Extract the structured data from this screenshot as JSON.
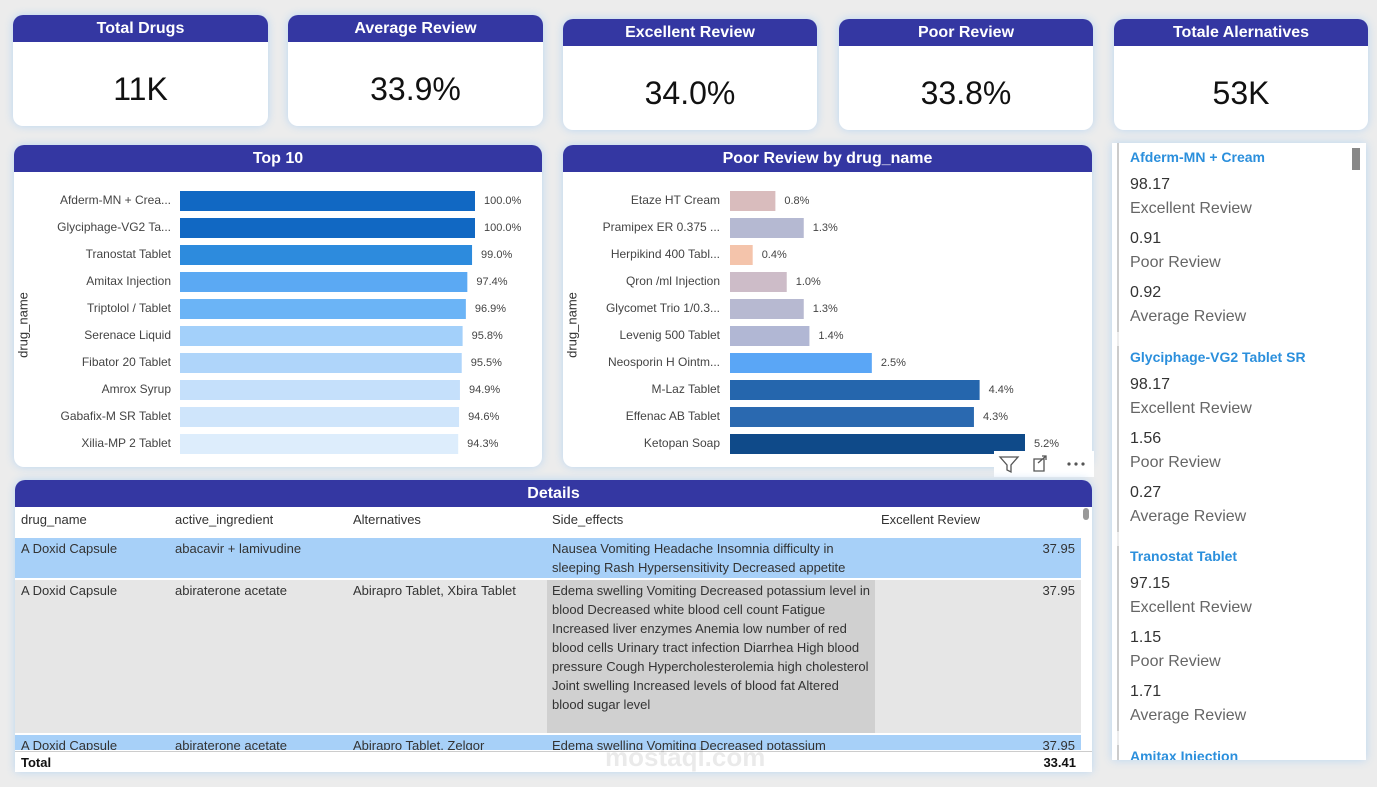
{
  "cards": [
    {
      "title": "Total Drugs",
      "value": "11K"
    },
    {
      "title": "Average Review",
      "value": "33.9%"
    },
    {
      "title": "Excellent Review",
      "value": "34.0%"
    },
    {
      "title": "Poor Review",
      "value": "33.8%"
    },
    {
      "title": "Totale Alernatives",
      "value": "53K"
    }
  ],
  "chart_data": [
    {
      "type": "bar",
      "orientation": "horizontal",
      "title": "Top 10",
      "y_label": "drug_name",
      "categories": [
        "Afderm-MN + Crea...",
        "Glyciphage-VG2 Ta...",
        "Tranostat Tablet",
        "Amitax Injection",
        "Triptolol / Tablet",
        "Serenace Liquid",
        "Fibator 20 Tablet",
        "Amrox Syrup",
        "Gabafix-M SR Tablet",
        "Xilia-MP 2 Tablet"
      ],
      "values": [
        100.0,
        100.0,
        99.0,
        97.4,
        96.9,
        95.8,
        95.5,
        94.9,
        94.6,
        94.3
      ],
      "value_labels": [
        "100.0%",
        "100.0%",
        "99.0%",
        "97.4%",
        "96.9%",
        "95.8%",
        "95.5%",
        "94.9%",
        "94.6%",
        "94.3%"
      ],
      "colors": [
        "#1168c3",
        "#1168c3",
        "#2d8bdd",
        "#5ba9f3",
        "#6bb4f6",
        "#a3d0fa",
        "#afd5fa",
        "#c5e0fb",
        "#cfe5fb",
        "#ddedfc"
      ]
    },
    {
      "type": "bar",
      "orientation": "horizontal",
      "title": "Poor Review by drug_name",
      "y_label": "drug_name",
      "categories": [
        "Etaze HT Cream",
        "Pramipex ER 0.375 ...",
        "Herpikind 400 Tabl...",
        "Qron /ml Injection",
        "Glycomet Trio 1/0.3...",
        "Levenig 500 Tablet",
        "Neosporin H Ointm...",
        "M-Laz Tablet",
        "Effenac AB Tablet",
        "Ketopan Soap"
      ],
      "values": [
        0.8,
        1.3,
        0.4,
        1.0,
        1.3,
        1.4,
        2.5,
        4.4,
        4.3,
        5.2
      ],
      "value_labels": [
        "0.8%",
        "1.3%",
        "0.4%",
        "1.0%",
        "1.3%",
        "1.4%",
        "2.5%",
        "4.4%",
        "4.3%",
        "5.2%"
      ],
      "colors": [
        "#d9bcbd",
        "#b5b9d2",
        "#f4c4ab",
        "#cdbcc8",
        "#b7b9d1",
        "#b1b7d4",
        "#5aa6f6",
        "#2566ad",
        "#2a69b0",
        "#0f4a89"
      ]
    }
  ],
  "details": {
    "title": "Details",
    "columns": [
      "drug_name",
      "active_ingredient",
      "Alternatives",
      "Side_effects",
      "Excellent Review"
    ],
    "rows": [
      [
        "A Doxid Capsule",
        "abacavir + lamivudine",
        null,
        "Nausea Vomiting Headache Insomnia difficulty in sleeping Rash Hypersensitivity Decreased appetite",
        37.95
      ],
      [
        "A Doxid Capsule",
        "abiraterone acetate",
        "Abirapro Tablet, Xbira Tablet",
        "Edema swelling Vomiting Decreased potassium level in blood Decreased white blood cell count Fatigue Increased liver enzymes Anemia low number of red blood cells Urinary tract infection Diarrhea High blood pressure Cough Hypercholesterolemia high cholesterol Joint swelling Increased levels of blood fat Altered blood sugar level",
        37.95
      ],
      [
        "A Doxid Capsule",
        "abiraterone acetate",
        "Abirapro Tablet, Zelgor",
        "Edema swelling Vomiting Decreased potassium",
        37.95
      ]
    ],
    "total": {
      "label": "Total",
      "value": 33.41
    }
  },
  "drug_list": {
    "items": [
      {
        "name": "Afderm-MN + Cream",
        "metrics": [
          {
            "value": 98.17,
            "label": "Excellent Review"
          },
          {
            "value": 0.91,
            "label": "Poor Review"
          },
          {
            "value": 0.92,
            "label": "Average Review"
          }
        ]
      },
      {
        "name": "Glyciphage-VG2 Tablet SR",
        "metrics": [
          {
            "value": 98.17,
            "label": "Excellent Review"
          },
          {
            "value": 1.56,
            "label": "Poor Review"
          },
          {
            "value": 0.27,
            "label": "Average Review"
          }
        ]
      },
      {
        "name": "Tranostat Tablet",
        "metrics": [
          {
            "value": 97.15,
            "label": "Excellent Review"
          },
          {
            "value": 1.15,
            "label": "Poor Review"
          },
          {
            "value": 1.71,
            "label": "Average Review"
          }
        ]
      },
      {
        "name": "Amitax Injection",
        "metrics": []
      }
    ]
  },
  "watermark": "mostaql.com"
}
